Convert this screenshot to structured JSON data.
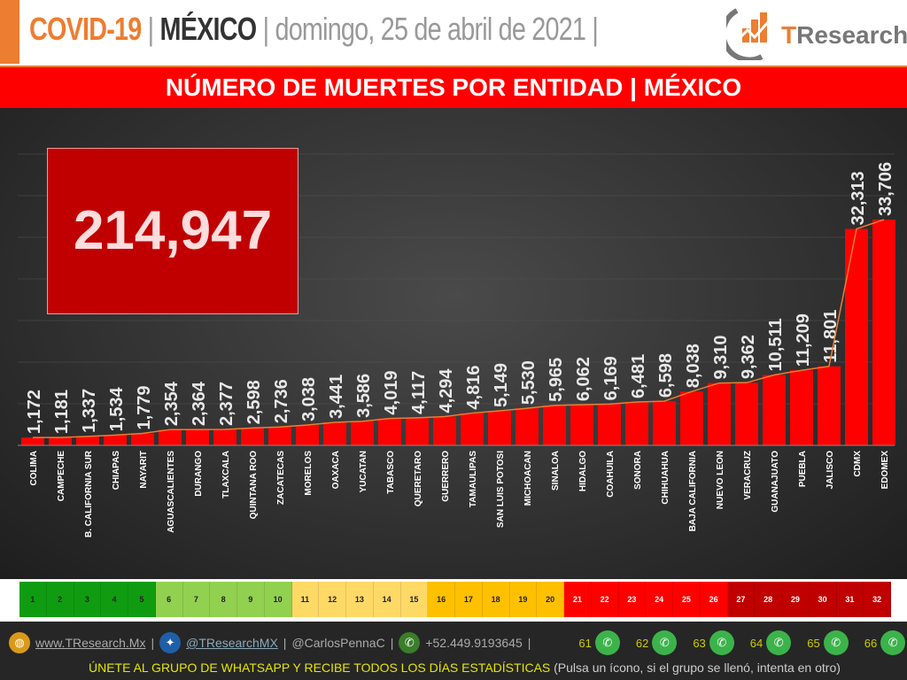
{
  "header": {
    "title1": "COVID-19",
    "sep": "|",
    "title2": "MÉXICO",
    "date": "domingo, 25 de abril de 2021",
    "logo_t": "T",
    "logo_rest": "Research"
  },
  "subtitle": "NÚMERO DE MUERTES POR ENTIDAD | MÉXICO",
  "total": "214,947",
  "chart_data": {
    "type": "bar",
    "title": "NÚMERO DE MUERTES POR ENTIDAD | MÉXICO",
    "categories": [
      "COLIMA",
      "CAMPECHE",
      "B. CALIFORNIA SUR",
      "CHIAPAS",
      "NAYARIT",
      "AGUASCALIENTES",
      "DURANGO",
      "TLAXCALA",
      "QUINTANA ROO",
      "ZACATECAS",
      "MORELOS",
      "OAXACA",
      "YUCATAN",
      "TABASCO",
      "QUERETARO",
      "GUERRERO",
      "TAMAULIPAS",
      "SAN LUIS POTOSI",
      "MICHOACAN",
      "SINALOA",
      "HIDALGO",
      "COAHUILA",
      "SONORA",
      "CHIHUAHUA",
      "BAJA CALIFORNIA",
      "NUEVO LEON",
      "VERACRUZ",
      "GUANAJUATO",
      "PUEBLA",
      "JALISCO",
      "CDMX",
      "EDOMEX"
    ],
    "values": [
      1172,
      1181,
      1337,
      1534,
      1779,
      2354,
      2364,
      2377,
      2598,
      2736,
      3038,
      3441,
      3586,
      4019,
      4117,
      4294,
      4816,
      5149,
      5530,
      5965,
      6062,
      6169,
      6481,
      6598,
      8038,
      9310,
      9362,
      10511,
      11209,
      11801,
      32313,
      33706
    ],
    "labels": [
      "1,172",
      "1,181",
      "1,337",
      "1,534",
      "1,779",
      "2,354",
      "2,364",
      "2,377",
      "2,598",
      "2,736",
      "3,038",
      "3,441",
      "3,586",
      "4,019",
      "4,117",
      "4,294",
      "4,816",
      "5,149",
      "5,530",
      "5,965",
      "6,062",
      "6,169",
      "6,481",
      "6,598",
      "8,038",
      "9,310",
      "9,362",
      "10,511",
      "11,209",
      "11,801",
      "32,313",
      "33,706"
    ],
    "ylim": [
      0,
      36000
    ],
    "bar_color": "#ff0000",
    "line_color": "#ed7d31"
  },
  "strip": {
    "ranks": [
      "1",
      "2",
      "3",
      "4",
      "5",
      "6",
      "7",
      "8",
      "9",
      "10",
      "11",
      "12",
      "13",
      "14",
      "15",
      "16",
      "17",
      "18",
      "19",
      "20",
      "21",
      "22",
      "23",
      "24",
      "25",
      "26",
      "27",
      "28",
      "29",
      "30",
      "31",
      "32"
    ],
    "colors": [
      "#109c10",
      "#92d050",
      "#ffd966",
      "#ffc000",
      "#ff0000",
      "#c00000"
    ]
  },
  "footer": {
    "web": "www.TResearch.Mx",
    "twitter": "@TResearchMX",
    "handle2": "@CarlosPennaC",
    "phone": "+52.449.9193645",
    "groups": [
      "61",
      "62",
      "63",
      "64",
      "65",
      "66"
    ],
    "cta": "ÚNETE AL GRUPO DE WHATSAPP Y RECIBE TODOS LOS DÍAS ESTADÍSTICAS",
    "cta_note": "(Pulsa un ícono, si el grupo se llenó, intenta en otro)",
    "sep": "|"
  }
}
